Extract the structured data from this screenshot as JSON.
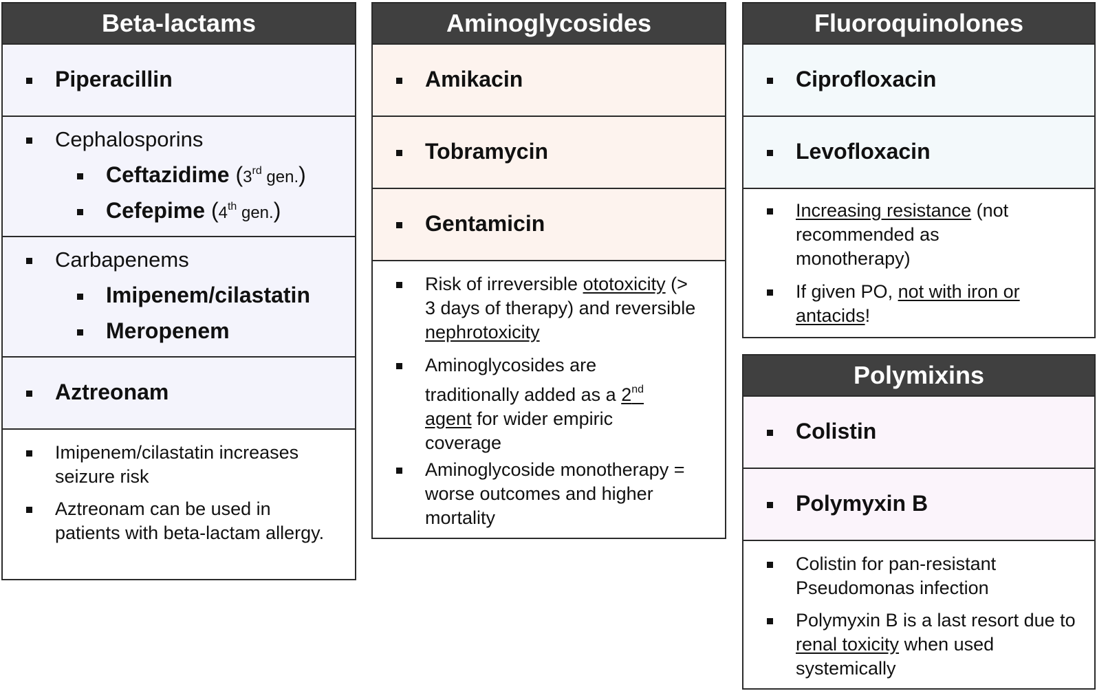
{
  "beta": {
    "title": "Beta-lactams",
    "piperacillin": "Piperacillin",
    "cephalosporins": "Cephalosporins",
    "ceftazidime": "Ceftazidime",
    "ceftazidime_gen_num": "3",
    "ceftazidime_gen_sup": "rd",
    "cefepime": "Cefepime",
    "cefepime_gen_num": "4",
    "cefepime_gen_sup": "th",
    "gen_word": " gen.",
    "carbapenems": "Carbapenems",
    "imipenem": "Imipenem/cilastatin",
    "meropenem": "Meropenem",
    "aztreonam": "Aztreonam",
    "note1": "Imipenem/cilastatin increases seizure risk",
    "note2": "Aztreonam can be used in patients with beta-lactam allergy."
  },
  "amino": {
    "title": "Aminoglycosides",
    "items": [
      "Amikacin",
      "Tobramycin",
      "Gentamicin"
    ],
    "note1_a": "Risk of irreversible ",
    "note1_u1": "ototoxicity",
    "note1_b": " (> 3 days of therapy) and reversible ",
    "note1_u2": "nephrotoxicity",
    "note2_a": "Aminoglycosides are traditionally added as a ",
    "note2_u_num": "2",
    "note2_u_sup": "nd",
    "note2_u_rest": " agent",
    "note2_b": " for wider empiric coverage",
    "note3": "Aminoglycoside monotherapy = worse outcomes and higher mortality"
  },
  "fluoro": {
    "title": "Fluoroquinolones",
    "items": [
      "Ciprofloxacin",
      "Levofloxacin"
    ],
    "note1_u": "Increasing resistance",
    "note1_b": " (not recommended as monotherapy)",
    "note2_a": "If given PO, ",
    "note2_u": "not with iron or antacids",
    "note2_b": "!"
  },
  "poly": {
    "title": "Polymixins",
    "items": [
      "Colistin",
      "Polymyxin B"
    ],
    "note1": "Colistin for pan-resistant Pseudomonas infection",
    "note2_a": "Polymyxin B is a last resort due to ",
    "note2_u": "renal toxicity",
    "note2_b": " when used systemically"
  },
  "colors": {
    "header_bg": "#404040",
    "beta_bg": "#f4f4fc",
    "amino_bg": "#fdf3ee",
    "fluoro_bg": "#f3f9fb",
    "poly_bg": "#fbf4fb"
  }
}
